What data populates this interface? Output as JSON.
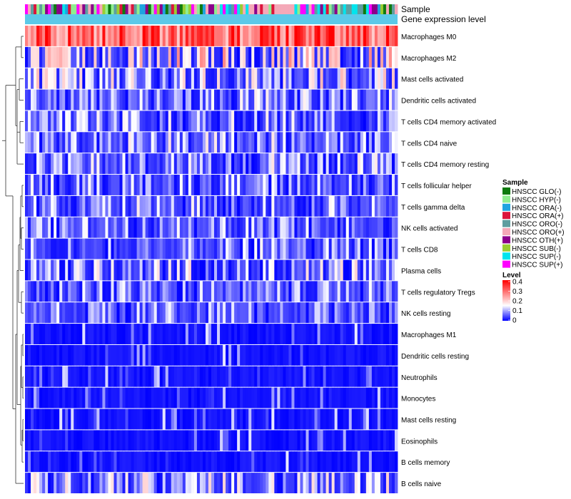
{
  "chart_data": {
    "type": "heatmap",
    "annotation_labels": [
      "Sample",
      "Gene expression level"
    ],
    "rows": [
      {
        "name": "Macrophages M0",
        "mean": 0.31
      },
      {
        "name": "Macrophages M2",
        "mean": 0.15
      },
      {
        "name": "Mast cells activated",
        "mean": 0.1
      },
      {
        "name": "Dendritic cells activated",
        "mean": 0.05
      },
      {
        "name": "T cells CD4 memory activated",
        "mean": 0.05
      },
      {
        "name": "T cells CD4 naive",
        "mean": 0.06
      },
      {
        "name": "T cells CD4 memory resting",
        "mean": 0.06
      },
      {
        "name": "T cells follicular helper",
        "mean": 0.04
      },
      {
        "name": "T cells gamma delta",
        "mean": 0.05
      },
      {
        "name": "NK cells activated",
        "mean": 0.04
      },
      {
        "name": "T cells CD8",
        "mean": 0.04
      },
      {
        "name": "Plasma cells",
        "mean": 0.08
      },
      {
        "name": "T cells regulatory  Tregs",
        "mean": 0.03
      },
      {
        "name": "NK cells resting",
        "mean": 0.03
      },
      {
        "name": "Macrophages M1",
        "mean": 0.01
      },
      {
        "name": "Dendritic cells resting",
        "mean": 0.01
      },
      {
        "name": "Neutrophils",
        "mean": 0.01
      },
      {
        "name": "Monocytes",
        "mean": 0.01
      },
      {
        "name": "Mast cells resting",
        "mean": 0.01
      },
      {
        "name": "Eosinophils",
        "mean": 0.005
      },
      {
        "name": "B cells memory",
        "mean": 0.005
      },
      {
        "name": "B cells naive",
        "mean": 0.08
      }
    ],
    "n_samples": 130,
    "legend_sample": {
      "title": "Sample",
      "entries": [
        {
          "label": "HNSCC GLO(-)",
          "color": "#0f7a0f"
        },
        {
          "label": "HNSCC HYP(-)",
          "color": "#90ee90"
        },
        {
          "label": "HNSCC ORA(-)",
          "color": "#1fa3e0"
        },
        {
          "label": "HNSCC ORA(+)",
          "color": "#dc143c"
        },
        {
          "label": "HNSCC ORO(-)",
          "color": "#5f9ea0"
        },
        {
          "label": "HNSCC ORO(+)",
          "color": "#f4a9b8"
        },
        {
          "label": "HNSCC OTH(+)",
          "color": "#8b008b"
        },
        {
          "label": "HNSCC SUB(-)",
          "color": "#9acd32"
        },
        {
          "label": "HNSCC SUP(-)",
          "color": "#00e5ee"
        },
        {
          "label": "HNSCC SUP(+)",
          "color": "#ff00ff"
        }
      ]
    },
    "legend_level": {
      "title": "Level",
      "range": [
        0,
        0.4
      ],
      "ticks": [
        "0.4",
        "0.3",
        "0.2",
        "0.1",
        "0"
      ],
      "colors": [
        "#0000ff",
        "#ffffff",
        "#ff0000"
      ],
      "midpoint": 0.15
    },
    "gene_expression_color": "#5bc9e8"
  }
}
